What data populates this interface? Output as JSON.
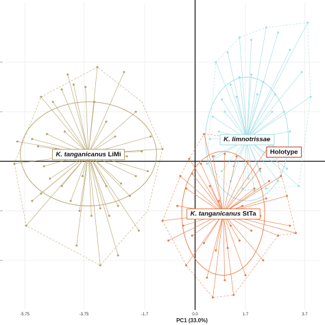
{
  "chart_data": {
    "type": "scatter",
    "title": "",
    "xlabel": "PC1 (33.0%)",
    "ylabel": "",
    "xlim": [
      -6.4,
      4.2
    ],
    "ylim": [
      -3.0,
      3.2
    ],
    "grid": true,
    "x_ticks": [
      -5.75,
      -3.75,
      -1.7,
      0.0,
      1.7,
      3.7
    ],
    "x_tick_labels": [
      "-5.75",
      "-3.75",
      "-1.7",
      "0.0",
      "1.7",
      "3.7"
    ],
    "y_ticks": [
      -2.0,
      -1.0,
      0.0,
      1.0,
      2.0
    ],
    "series": [
      {
        "name": "K. tanganicanus LiMi",
        "label_genus": "K.",
        "label_species": "tanganicanus",
        "label_pop": "LiMi",
        "color": "#b5a06a",
        "centroid": [
          -3.6,
          0.15
        ],
        "ellipse": {
          "rx": 2.3,
          "ry": 1.05
        },
        "points": [
          [
            -5.5,
            0.45
          ],
          [
            -5.3,
            0.3
          ],
          [
            -5.0,
            0.55
          ],
          [
            -4.7,
            0.25
          ],
          [
            -4.4,
            0.6
          ],
          [
            -5.1,
            -0.1
          ],
          [
            -4.9,
            -0.35
          ],
          [
            -5.2,
            -0.65
          ],
          [
            -4.5,
            -0.5
          ],
          [
            -4.2,
            -0.8
          ],
          [
            -3.9,
            -1.0
          ],
          [
            -3.5,
            -1.1
          ],
          [
            -3.2,
            -0.95
          ],
          [
            -2.9,
            -1.1
          ],
          [
            -2.6,
            -0.9
          ],
          [
            -2.2,
            -0.7
          ],
          [
            -2.5,
            -0.45
          ],
          [
            -2.0,
            -0.3
          ],
          [
            -2.3,
            0.1
          ],
          [
            -1.8,
            0.2
          ],
          [
            -2.7,
            0.5
          ],
          [
            -3.0,
            0.8
          ],
          [
            -3.4,
            1.2
          ],
          [
            -3.7,
            1.5
          ],
          [
            -4.1,
            1.55
          ],
          [
            -4.5,
            1.45
          ],
          [
            -4.8,
            1.2
          ],
          [
            -5.7,
            -1.3
          ],
          [
            -4.0,
            -1.7
          ],
          [
            -3.2,
            -2.1
          ],
          [
            -2.6,
            -1.9
          ],
          [
            -1.9,
            -1.4
          ],
          [
            -1.6,
            -0.2
          ],
          [
            -1.5,
            0.5
          ],
          [
            -3.3,
            1.9
          ],
          [
            -4.3,
            1.75
          ],
          [
            -2.4,
            1.8
          ],
          [
            -5.2,
            1.3
          ],
          [
            -6.0,
            0.4
          ],
          [
            -6.1,
            -0.05
          ],
          [
            -1.1,
            0.25
          ],
          [
            -5.5,
            -0.8
          ],
          [
            -2.0,
            1.0
          ],
          [
            -3.8,
            -0.3
          ],
          [
            -3.0,
            -0.5
          ]
        ],
        "hull": [
          [
            -6.1,
            -0.05
          ],
          [
            -5.7,
            -1.3
          ],
          [
            -3.2,
            -2.1
          ],
          [
            -1.6,
            -1.0
          ],
          [
            -1.1,
            0.25
          ],
          [
            -1.8,
            1.2
          ],
          [
            -3.3,
            1.9
          ],
          [
            -5.2,
            1.3
          ]
        ]
      },
      {
        "name": "K. limnotrissae",
        "label_genus": "K.",
        "label_species": "limnotrissae",
        "label_pop": "",
        "color": "#9fdde6",
        "centroid": [
          1.75,
          0.45
        ],
        "ellipse": {
          "rx": 1.4,
          "ry": 1.25
        },
        "points": [
          [
            0.6,
            0.9
          ],
          [
            0.9,
            1.25
          ],
          [
            1.2,
            1.55
          ],
          [
            1.5,
            1.7
          ],
          [
            1.9,
            1.75
          ],
          [
            2.3,
            1.6
          ],
          [
            2.7,
            1.35
          ],
          [
            3.0,
            1.0
          ],
          [
            3.2,
            0.6
          ],
          [
            3.3,
            0.2
          ],
          [
            3.1,
            -0.15
          ],
          [
            2.8,
            -0.4
          ],
          [
            2.4,
            -0.55
          ],
          [
            2.0,
            -0.6
          ],
          [
            1.6,
            -0.55
          ],
          [
            1.2,
            -0.4
          ],
          [
            0.9,
            -0.2
          ],
          [
            0.65,
            0.1
          ],
          [
            0.5,
            0.45
          ],
          [
            0.8,
            0.6
          ],
          [
            1.0,
            1.0
          ],
          [
            1.4,
            1.3
          ],
          [
            2.1,
            1.35
          ],
          [
            2.6,
            1.0
          ],
          [
            2.5,
            0.1
          ],
          [
            2.2,
            -0.2
          ],
          [
            1.3,
            -0.1
          ],
          [
            0.7,
            2.0
          ],
          [
            1.1,
            2.2
          ],
          [
            1.5,
            2.5
          ],
          [
            1.9,
            2.45
          ],
          [
            2.4,
            2.7
          ],
          [
            2.8,
            2.6
          ],
          [
            3.2,
            2.25
          ],
          [
            3.6,
            1.8
          ],
          [
            3.9,
            1.3
          ],
          [
            3.5,
            -0.5
          ],
          [
            0.4,
            -0.05
          ],
          [
            1.8,
            -0.35
          ],
          [
            3.8,
            2.8
          ]
        ],
        "hull": [
          [
            0.4,
            -0.05
          ],
          [
            1.3,
            -0.6
          ],
          [
            2.4,
            -0.55
          ],
          [
            3.5,
            -0.5
          ],
          [
            3.9,
            1.3
          ],
          [
            3.8,
            2.8
          ],
          [
            2.4,
            2.7
          ],
          [
            1.5,
            2.5
          ],
          [
            0.7,
            2.0
          ]
        ]
      },
      {
        "name": "K. tanganicanus StTa",
        "label_genus": "K.",
        "label_species": "tanganicanus",
        "label_pop": "StTa",
        "color": "#e87a45",
        "centroid": [
          0.95,
          -1.05
        ],
        "ellipse": {
          "rx": 1.4,
          "ry": 1.25
        },
        "points": [
          [
            -0.5,
            -0.3
          ],
          [
            -0.3,
            -0.55
          ],
          [
            -0.6,
            -0.9
          ],
          [
            -0.4,
            -1.3
          ],
          [
            -0.1,
            -1.5
          ],
          [
            0.3,
            -1.65
          ],
          [
            0.7,
            -1.8
          ],
          [
            1.1,
            -1.75
          ],
          [
            1.5,
            -1.6
          ],
          [
            1.9,
            -1.4
          ],
          [
            2.2,
            -1.1
          ],
          [
            2.4,
            -0.75
          ],
          [
            2.5,
            -0.4
          ],
          [
            2.2,
            -0.15
          ],
          [
            1.8,
            0.0
          ],
          [
            1.4,
            0.1
          ],
          [
            1.0,
            0.15
          ],
          [
            0.6,
            0.1
          ],
          [
            0.2,
            -0.05
          ],
          [
            -0.1,
            -0.25
          ],
          [
            0.5,
            -0.5
          ],
          [
            0.8,
            -0.8
          ],
          [
            1.2,
            -1.3
          ],
          [
            1.6,
            -0.9
          ],
          [
            2.0,
            -0.55
          ],
          [
            -1.1,
            -1.2
          ],
          [
            -0.9,
            -1.6
          ],
          [
            -0.3,
            -2.1
          ],
          [
            0.4,
            -2.35
          ],
          [
            1.0,
            -2.4
          ],
          [
            1.7,
            -2.3
          ],
          [
            2.3,
            -2.0
          ],
          [
            2.8,
            -1.5
          ],
          [
            3.2,
            -1.3
          ],
          [
            3.4,
            -1.45
          ],
          [
            3.1,
            -0.7
          ],
          [
            2.9,
            -0.3
          ],
          [
            2.6,
            0.4
          ],
          [
            0.3,
            0.55
          ],
          [
            -0.2,
            0.05
          ],
          [
            1.3,
            -2.7
          ],
          [
            0.6,
            -2.75
          ]
        ],
        "hull": [
          [
            -1.1,
            -1.2
          ],
          [
            -0.5,
            -0.3
          ],
          [
            -0.2,
            0.05
          ],
          [
            0.3,
            0.55
          ],
          [
            2.6,
            0.4
          ],
          [
            3.1,
            -0.7
          ],
          [
            3.4,
            -1.45
          ],
          [
            2.8,
            -1.5
          ],
          [
            1.3,
            -2.7
          ],
          [
            0.6,
            -2.75
          ],
          [
            -0.3,
            -2.1
          ]
        ]
      }
    ],
    "annotations": [
      {
        "text": "Holotype",
        "color": "#c0392b",
        "point": [
          1.95,
          0.3
        ],
        "box_at": [
          3.0,
          0.2
        ]
      }
    ]
  }
}
